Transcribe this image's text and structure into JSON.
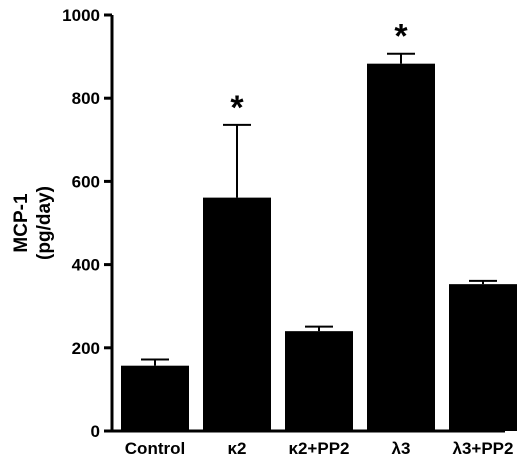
{
  "chart_data": {
    "type": "bar",
    "title": "",
    "xlabel": "",
    "ylabel_lines": [
      "MCP-1",
      "(pg/day)"
    ],
    "categories": [
      "Control",
      "κ2",
      "κ2+PP2",
      "λ3",
      "λ3+PP2"
    ],
    "values": [
      157,
      561,
      240,
      883,
      353
    ],
    "error_upper": [
      172,
      736,
      251,
      907,
      361
    ],
    "significant": [
      false,
      true,
      false,
      true,
      false
    ],
    "significance_marker": "*",
    "ylim": [
      0,
      1000
    ],
    "yticks": [
      0,
      200,
      400,
      600,
      800,
      1000
    ],
    "bar_color": "#000000",
    "grid": false,
    "legend": "none"
  }
}
